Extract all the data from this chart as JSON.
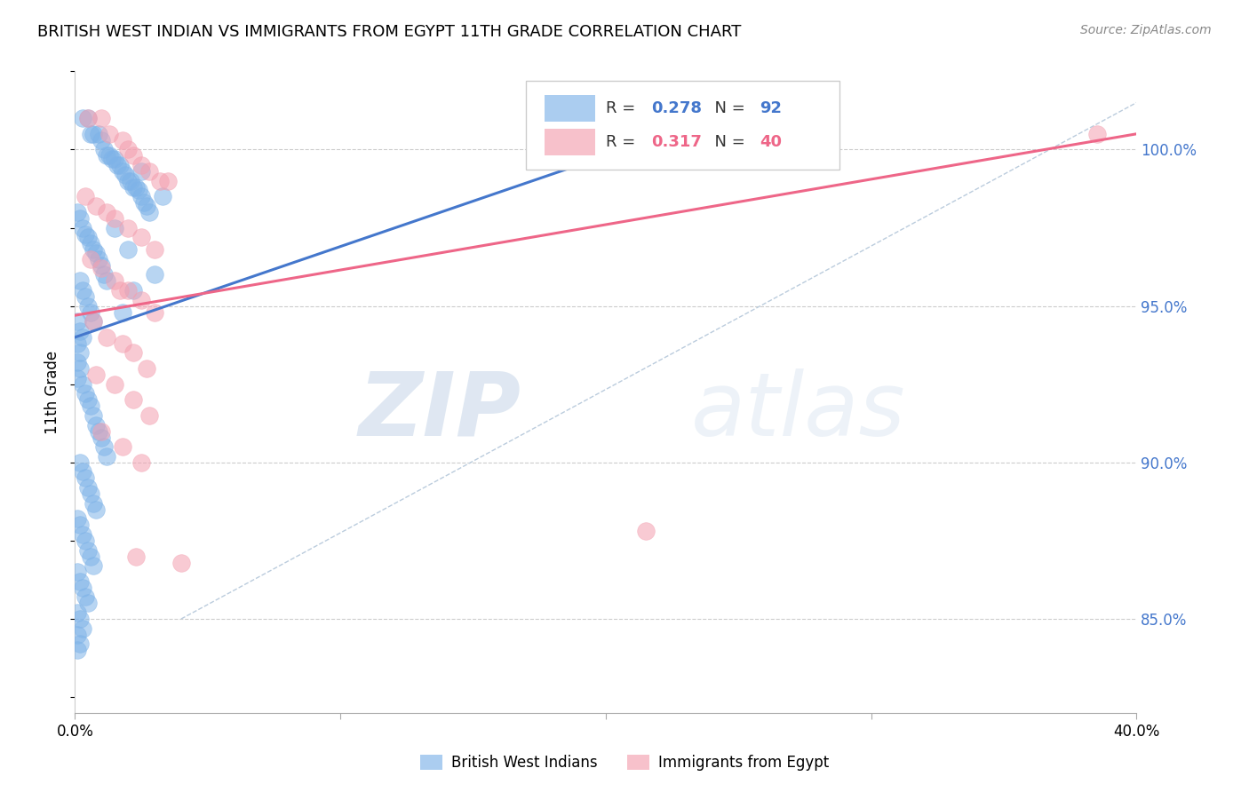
{
  "title": "BRITISH WEST INDIAN VS IMMIGRANTS FROM EGYPT 11TH GRADE CORRELATION CHART",
  "source": "Source: ZipAtlas.com",
  "ylabel": "11th Grade",
  "xlim": [
    0.0,
    0.4
  ],
  "ylim": [
    0.82,
    1.025
  ],
  "x_ticks": [
    0.0,
    0.1,
    0.2,
    0.3,
    0.4
  ],
  "x_tick_labels": [
    "0.0%",
    "",
    "",
    "",
    "40.0%"
  ],
  "y_ticks_right": [
    0.85,
    0.9,
    0.95,
    1.0
  ],
  "y_tick_labels_right": [
    "85.0%",
    "90.0%",
    "95.0%",
    "100.0%"
  ],
  "blue_R": 0.278,
  "blue_N": 92,
  "pink_R": 0.317,
  "pink_N": 40,
  "blue_color": "#7EB3E8",
  "pink_color": "#F4A0B0",
  "blue_line_color": "#4477CC",
  "pink_line_color": "#EE6688",
  "diag_line_color": "#BBCCDD",
  "watermark_zip": "ZIP",
  "watermark_atlas": "atlas",
  "legend_label_blue": "British West Indians",
  "legend_label_pink": "Immigrants from Egypt",
  "blue_scatter_x": [
    0.003,
    0.005,
    0.006,
    0.007,
    0.009,
    0.01,
    0.011,
    0.012,
    0.013,
    0.014,
    0.015,
    0.016,
    0.017,
    0.018,
    0.019,
    0.02,
    0.021,
    0.022,
    0.023,
    0.024,
    0.025,
    0.026,
    0.027,
    0.028,
    0.001,
    0.002,
    0.003,
    0.004,
    0.005,
    0.006,
    0.007,
    0.008,
    0.009,
    0.01,
    0.011,
    0.012,
    0.002,
    0.003,
    0.004,
    0.005,
    0.006,
    0.007,
    0.001,
    0.002,
    0.003,
    0.001,
    0.002,
    0.001,
    0.002,
    0.001,
    0.003,
    0.004,
    0.005,
    0.006,
    0.007,
    0.008,
    0.009,
    0.01,
    0.011,
    0.012,
    0.002,
    0.003,
    0.004,
    0.005,
    0.006,
    0.007,
    0.008,
    0.001,
    0.002,
    0.003,
    0.004,
    0.005,
    0.006,
    0.007,
    0.001,
    0.002,
    0.003,
    0.004,
    0.005,
    0.001,
    0.002,
    0.003,
    0.001,
    0.002,
    0.001,
    0.025,
    0.033,
    0.015,
    0.02,
    0.03,
    0.022,
    0.018
  ],
  "blue_scatter_y": [
    1.01,
    1.01,
    1.005,
    1.005,
    1.005,
    1.003,
    1.0,
    0.998,
    0.998,
    0.997,
    0.997,
    0.995,
    0.995,
    0.993,
    0.992,
    0.99,
    0.99,
    0.988,
    0.988,
    0.987,
    0.985,
    0.983,
    0.982,
    0.98,
    0.98,
    0.978,
    0.975,
    0.973,
    0.972,
    0.97,
    0.968,
    0.967,
    0.965,
    0.963,
    0.96,
    0.958,
    0.958,
    0.955,
    0.953,
    0.95,
    0.948,
    0.945,
    0.945,
    0.942,
    0.94,
    0.938,
    0.935,
    0.932,
    0.93,
    0.927,
    0.925,
    0.922,
    0.92,
    0.918,
    0.915,
    0.912,
    0.91,
    0.908,
    0.905,
    0.902,
    0.9,
    0.897,
    0.895,
    0.892,
    0.89,
    0.887,
    0.885,
    0.882,
    0.88,
    0.877,
    0.875,
    0.872,
    0.87,
    0.867,
    0.865,
    0.862,
    0.86,
    0.857,
    0.855,
    0.852,
    0.85,
    0.847,
    0.845,
    0.842,
    0.84,
    0.993,
    0.985,
    0.975,
    0.968,
    0.96,
    0.955,
    0.948
  ],
  "pink_scatter_x": [
    0.005,
    0.01,
    0.013,
    0.018,
    0.02,
    0.022,
    0.025,
    0.028,
    0.032,
    0.035,
    0.004,
    0.008,
    0.012,
    0.015,
    0.02,
    0.025,
    0.03,
    0.006,
    0.01,
    0.015,
    0.02,
    0.025,
    0.03,
    0.007,
    0.012,
    0.018,
    0.022,
    0.027,
    0.008,
    0.015,
    0.022,
    0.028,
    0.01,
    0.018,
    0.025,
    0.215,
    0.04,
    0.385,
    0.017,
    0.023
  ],
  "pink_scatter_y": [
    1.01,
    1.01,
    1.005,
    1.003,
    1.0,
    0.998,
    0.995,
    0.993,
    0.99,
    0.99,
    0.985,
    0.982,
    0.98,
    0.978,
    0.975,
    0.972,
    0.968,
    0.965,
    0.962,
    0.958,
    0.955,
    0.952,
    0.948,
    0.945,
    0.94,
    0.938,
    0.935,
    0.93,
    0.928,
    0.925,
    0.92,
    0.915,
    0.91,
    0.905,
    0.9,
    0.878,
    0.868,
    1.005,
    0.955,
    0.87
  ],
  "blue_trendline_x": [
    0.0,
    0.2
  ],
  "blue_trendline_y": [
    0.94,
    0.998
  ],
  "pink_trendline_x": [
    0.0,
    0.4
  ],
  "pink_trendline_y": [
    0.947,
    1.005
  ],
  "diag_line_x": [
    0.04,
    0.4
  ],
  "diag_line_y": [
    0.85,
    1.015
  ]
}
